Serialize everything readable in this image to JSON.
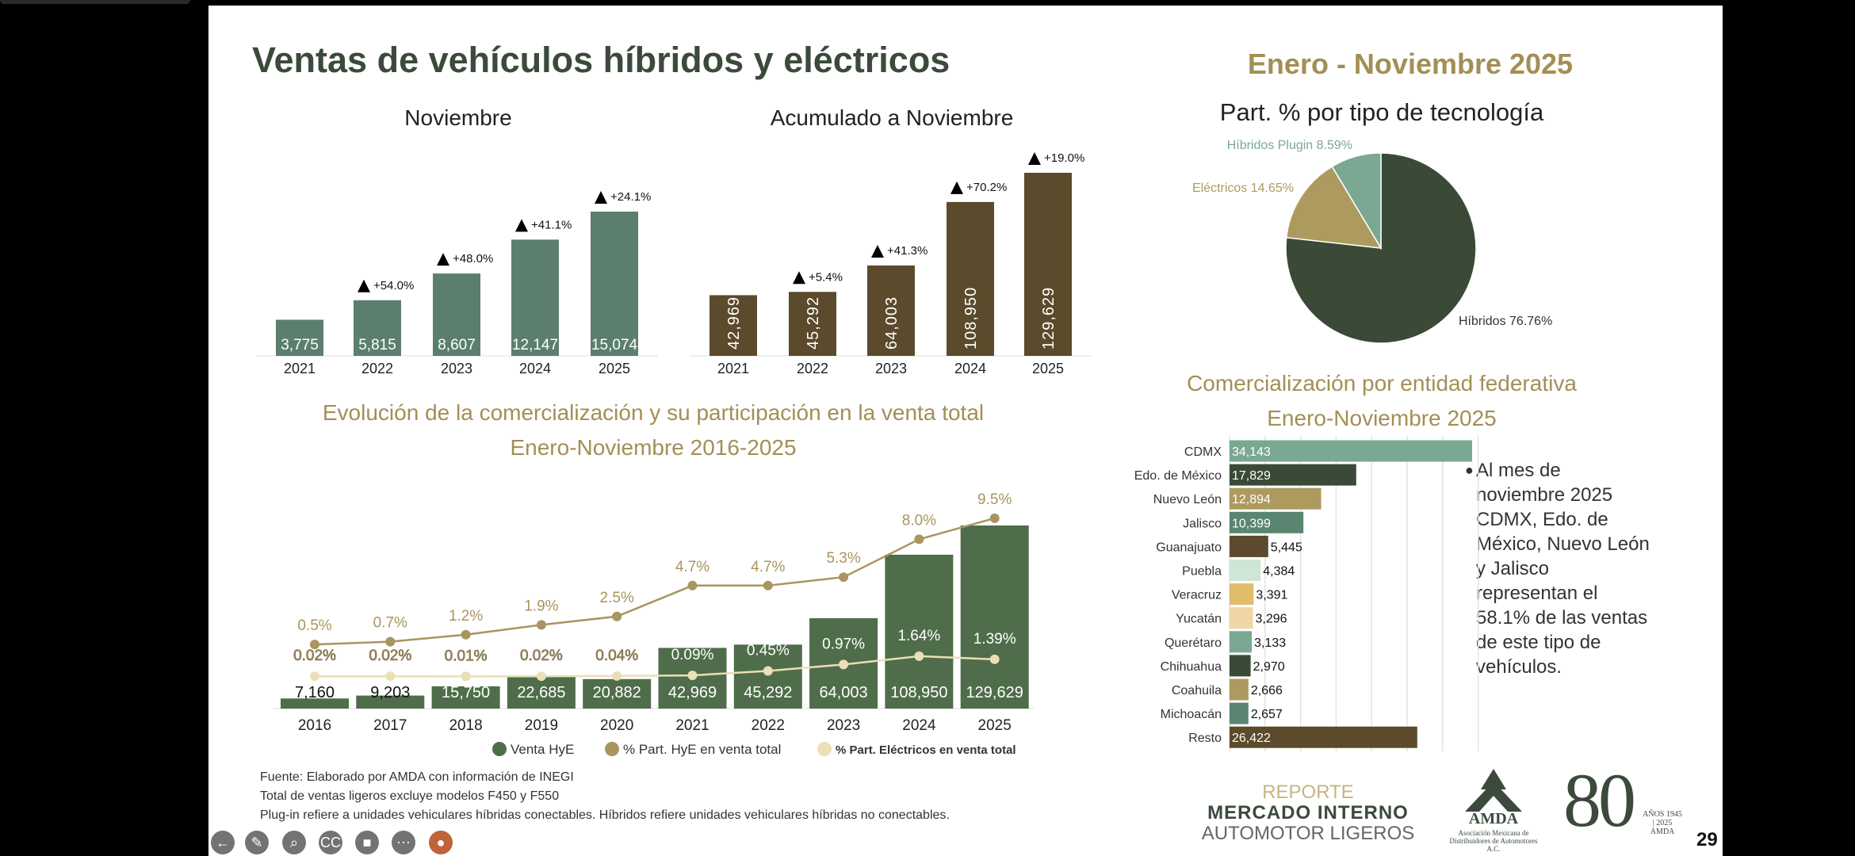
{
  "title": "Ventas de vehículos híbridos y eléctricos",
  "colors": {
    "title": "#3b4a3b",
    "gold": "#a38f55",
    "green_bar": "#5b7f6c",
    "brown_bar": "#5b4a2b",
    "evo_bar": "#4f6d4a",
    "hye_line": "#a8955f",
    "elec_line": "#eadfb5"
  },
  "chart_data": [
    {
      "type": "bar",
      "title": "Noviembre",
      "categories": [
        "2021",
        "2022",
        "2023",
        "2024",
        "2025"
      ],
      "values": [
        3775,
        5815,
        8607,
        12147,
        15074
      ],
      "value_labels": [
        "3,775",
        "5,815",
        "8,607",
        "12,147",
        "15,074"
      ],
      "growth_labels": [
        "",
        "+54.0%",
        "+48.0%",
        "+41.1%",
        "+24.1%"
      ],
      "growth_icon": "up-triangle-icon",
      "color": "#5b7f6c"
    },
    {
      "type": "bar",
      "title": "Acumulado a Noviembre",
      "categories": [
        "2021",
        "2022",
        "2023",
        "2024",
        "2025"
      ],
      "values": [
        42969,
        45292,
        64003,
        108950,
        129629
      ],
      "value_labels": [
        "42,969",
        "45,292",
        "64,003",
        "108,950",
        "129,629"
      ],
      "growth_labels": [
        "",
        "+5.4%",
        "+41.3%",
        "+70.2%",
        "+19.0%"
      ],
      "growth_icon": "up-triangle-icon",
      "color": "#5b4a2b"
    },
    {
      "type": "pie",
      "heading": "Enero - Noviembre 2025",
      "title": "Part. % por tipo de tecnología",
      "slices": [
        {
          "name": "Híbridos",
          "value": 76.76,
          "label": "Híbridos 76.76%",
          "color": "#3a4a37"
        },
        {
          "name": "Eléctricos",
          "value": 14.65,
          "label": "Eléctricos 14.65%",
          "color": "#ad9a5e"
        },
        {
          "name": "Híbridos Plugin",
          "value": 8.59,
          "label": "Híbridos Plugin 8.59%",
          "color": "#7aa892"
        }
      ]
    },
    {
      "type": "bar",
      "orientation": "horizontal",
      "title": "Comercialización por entidad federativa",
      "subtitle": "Enero-Noviembre 2025",
      "categories": [
        "CDMX",
        "Edo. de México",
        "Nuevo León",
        "Jalisco",
        "Guanajuato",
        "Puebla",
        "Veracruz",
        "Yucatán",
        "Querétaro",
        "Chihuahua",
        "Coahuila",
        "Michoacán",
        "Resto"
      ],
      "values": [
        34143,
        17829,
        12894,
        10399,
        5445,
        4384,
        3391,
        3296,
        3133,
        2970,
        2666,
        2657,
        26422
      ],
      "value_labels": [
        "34,143",
        "17,829",
        "12,894",
        "10,399",
        "5,445",
        "4,384",
        "3,391",
        "3,296",
        "3,133",
        "2,970",
        "2,666",
        "2,657",
        "26,422"
      ],
      "colors": [
        "#7aa892",
        "#3a4a37",
        "#ad9a5e",
        "#5a8570",
        "#5b4a2b",
        "#cfe5d6",
        "#e0bd6a",
        "#eed6a6",
        "#7aa892",
        "#3a4a37",
        "#ad9a5e",
        "#5a8570",
        "#5b4a2b"
      ],
      "xlim": [
        0,
        35000
      ],
      "grid": true
    },
    {
      "type": "bar+line",
      "title": "Evolución de la comercialización y su participación en la venta total",
      "subtitle": "Enero-Noviembre  2016-2025",
      "categories": [
        "2016",
        "2017",
        "2018",
        "2019",
        "2020",
        "2021",
        "2022",
        "2023",
        "2024",
        "2025"
      ],
      "series": [
        {
          "name": "Venta HyE",
          "type": "bar",
          "values": [
            7160,
            9203,
            15750,
            22685,
            20882,
            42969,
            45292,
            64003,
            108950,
            129629
          ],
          "labels": [
            "7,160",
            "9,203",
            "15,750",
            "22,685",
            "20,882",
            "42,969",
            "45,292",
            "64,003",
            "108,950",
            "129,629"
          ],
          "color": "#4f6d4a"
        },
        {
          "name": "% Part. HyE en venta total",
          "type": "line",
          "values": [
            0.5,
            0.7,
            1.2,
            1.9,
            2.5,
            4.7,
            4.7,
            5.3,
            8.0,
            9.5
          ],
          "labels": [
            "0.5%",
            "0.7%",
            "1.2%",
            "1.9%",
            "2.5%",
            "4.7%",
            "4.7%",
            "5.3%",
            "8.0%",
            "9.5%"
          ],
          "color": "#a8955f"
        },
        {
          "name": "% Part. Eléctricos en venta total",
          "type": "line",
          "values": [
            0.02,
            0.02,
            0.01,
            0.02,
            0.04,
            0.09,
            0.45,
            0.97,
            1.64,
            1.39
          ],
          "labels": [
            "0.02%",
            "0.02%",
            "0.01%",
            "0.02%",
            "0.04%",
            "0.09%",
            "0.45%",
            "0.97%",
            "1.64%",
            "1.39%"
          ],
          "color": "#eadfb5"
        }
      ],
      "legend": "bottom"
    }
  ],
  "bullet_text": "Al mes de noviembre 2025 CDMX, Edo. de México, Nuevo León y Jalisco representan el 58.1% de las ventas de este tipo de vehículos.",
  "footnotes": [
    "Fuente: Elaborado por AMDA con información de INEGI",
    "Total de ventas ligeros excluye modelos F450 y F550",
    "Plug-in refiere a unidades vehiculares híbridas conectables. Híbridos refiere unidades vehiculares híbridas no conectables."
  ],
  "footer": {
    "report_line1": "REPORTE",
    "report_line2": "MERCADO INTERNO",
    "report_line3": "AUTOMOTOR LIGEROS",
    "amda_logo_text": "AMDA",
    "amda_logo_sub": "Asociación Mexicana de Distribuidores de Automotores A.C.",
    "anniv_logo": "80 AÑOS 1945 | 2025 AMDA",
    "page_number": "29"
  },
  "toolbar": {
    "icons": [
      "back-arrow-icon",
      "pen-icon",
      "zoom-icon",
      "captions-icon",
      "camera-icon",
      "more-icon",
      "record-icon"
    ],
    "glyphs": [
      "←",
      "✎",
      "⌕",
      "CC",
      "■",
      "⋯",
      "●"
    ]
  }
}
